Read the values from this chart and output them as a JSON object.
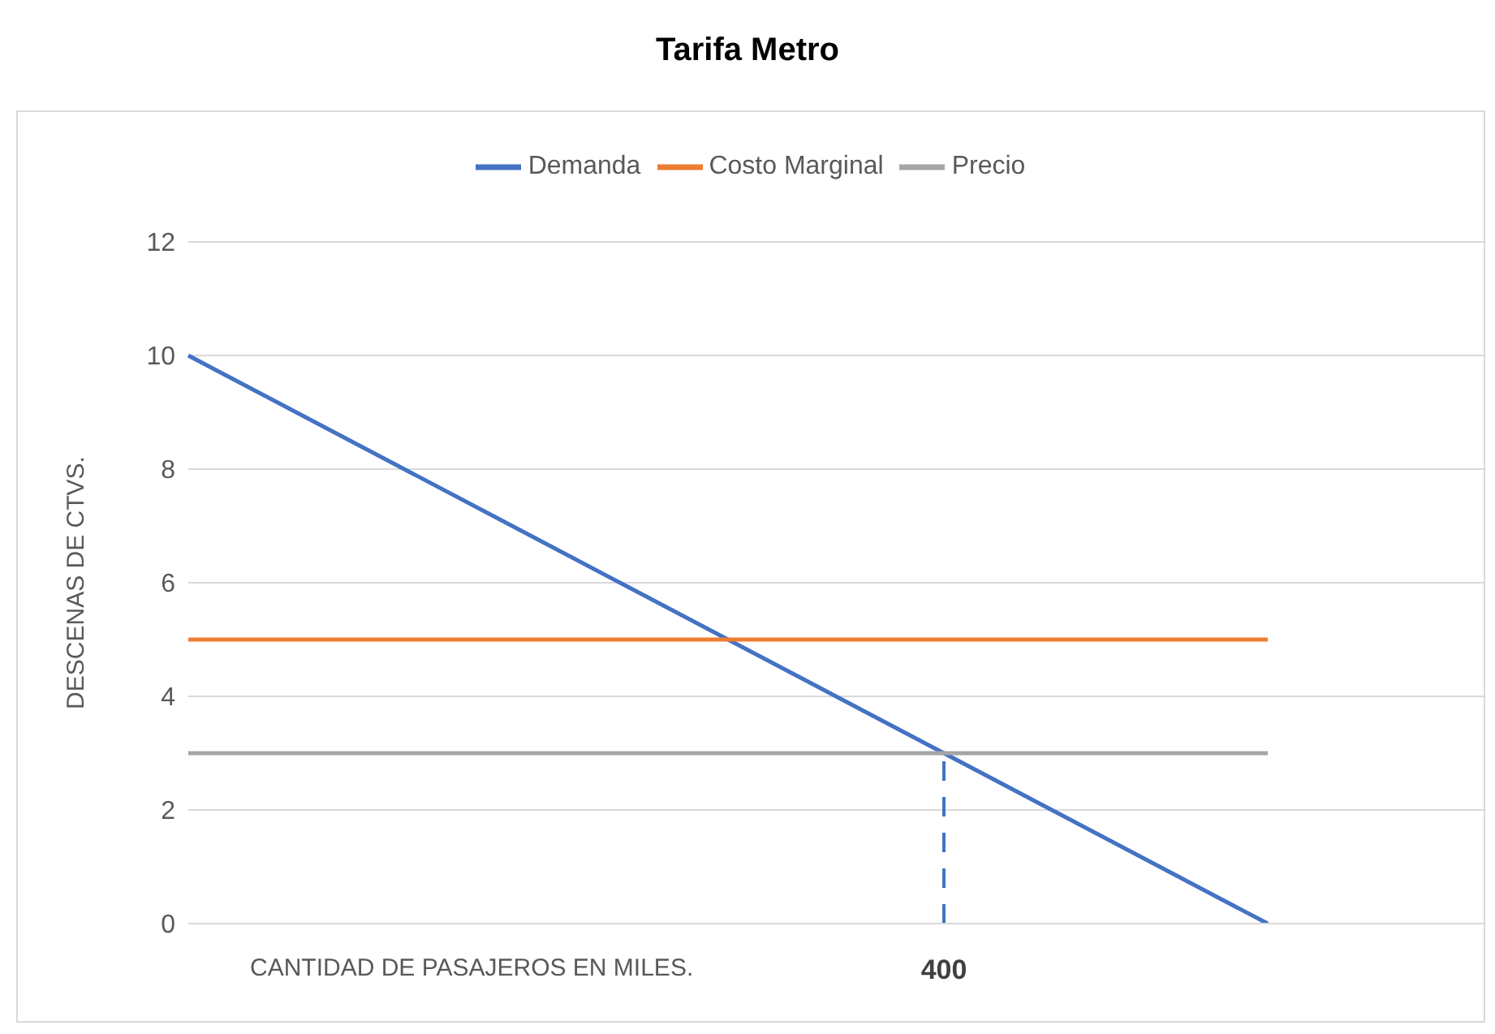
{
  "chart_data": {
    "type": "line",
    "title": "Tarifa Metro",
    "xlabel": "CANTIDAD DE PASAJEROS EN MILES.",
    "ylabel": "DESCENAS DE CTVS.",
    "categories": [
      null,
      null,
      null,
      null,
      null,
      null,
      null,
      null,
      null,
      null,
      null,
      null,
      null
    ],
    "ylim": [
      0,
      12
    ],
    "yticks": [
      0,
      2,
      4,
      6,
      8,
      10,
      12
    ],
    "grid": "y",
    "legend": "top",
    "marker": "none",
    "line_style": "solid",
    "series": [
      {
        "name": "Demanda",
        "color": "#4472c4",
        "values": [
          10,
          9,
          8,
          7,
          6,
          5,
          4,
          3,
          2,
          1,
          0,
          null,
          null
        ]
      },
      {
        "name": "Costo Marginal",
        "color": "#ed7d31",
        "values": [
          5,
          5,
          5,
          5,
          5,
          5,
          5,
          5,
          5,
          5,
          5,
          null,
          null
        ]
      },
      {
        "name": "Precio",
        "color": "#a5a5a5",
        "values": [
          3,
          3,
          3,
          3,
          3,
          3,
          3,
          3,
          3,
          3,
          3,
          null,
          null
        ]
      }
    ],
    "annotations": [
      "400"
    ]
  }
}
